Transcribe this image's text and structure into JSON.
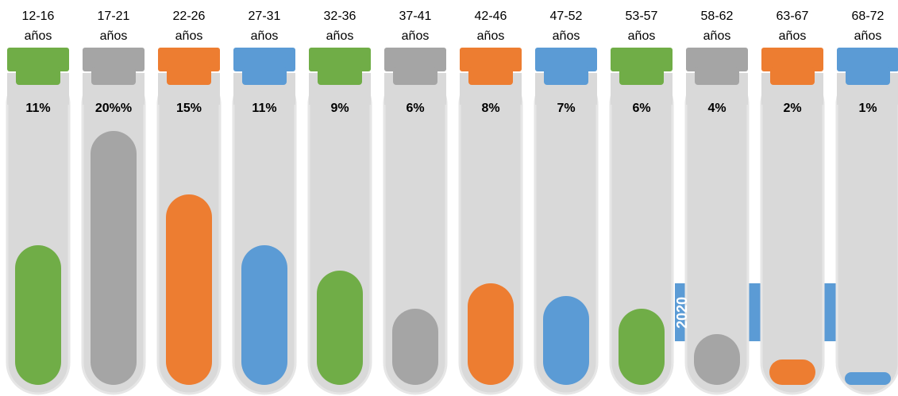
{
  "chart_data": {
    "type": "bar",
    "categories": [
      "12-16 años",
      "17-21 años",
      "22-26 años",
      "27-31 años",
      "32-36 años",
      "37-41 años",
      "42-46 años",
      "47-52 años",
      "53-57 años",
      "58-62 años",
      "63-67 años",
      "68-72 años"
    ],
    "values": [
      11,
      20,
      15,
      11,
      9,
      6,
      8,
      7,
      6,
      4,
      2,
      1
    ],
    "value_labels": [
      "11%",
      "20%%",
      "15%",
      "11%",
      "9%",
      "6%",
      "8%",
      "7%",
      "6%",
      "4%",
      "2%",
      "1%"
    ],
    "colors": [
      "#70ad47",
      "#a5a5a5",
      "#ed7d31",
      "#5b9bd5"
    ],
    "ylim": [
      0,
      20
    ],
    "annotation": "2020"
  }
}
